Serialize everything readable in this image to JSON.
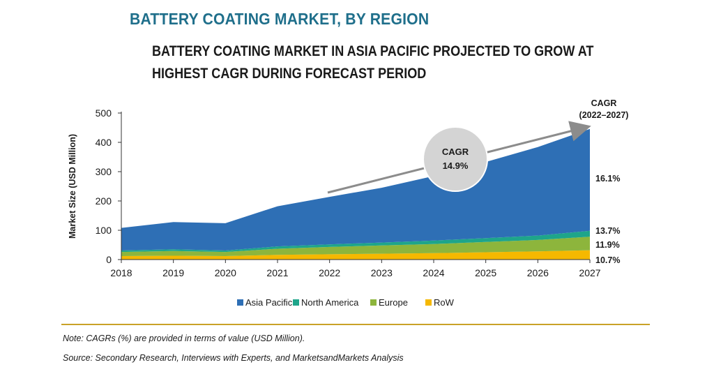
{
  "header": {
    "title": "BATTERY COATING MARKET, BY REGION",
    "subtitle_line1": "BATTERY COATING MARKET IN ASIA PACIFIC PROJECTED TO GROW AT",
    "subtitle_line2": "HIGHEST CAGR DURING FORECAST PERIOD"
  },
  "chart_data": {
    "type": "area",
    "stacked": true,
    "ylabel": "Market Size (USD Million)",
    "xlabel": "",
    "ylim": [
      0,
      500
    ],
    "yticks": [
      0,
      100,
      200,
      300,
      400,
      500
    ],
    "categories": [
      "2018",
      "2019",
      "2020",
      "2021",
      "2022",
      "2023",
      "2024",
      "2025",
      "2026",
      "2027"
    ],
    "series": [
      {
        "name": "RoW",
        "color": "#f5b800",
        "values": [
          12,
          13,
          12,
          16,
          18,
          20,
          22,
          25,
          28,
          32
        ],
        "cagr": "10.7%"
      },
      {
        "name": "Europe",
        "color": "#8db53c",
        "values": [
          14,
          16,
          14,
          21,
          25,
          28,
          31,
          35,
          39,
          46
        ],
        "cagr": "11.9%"
      },
      {
        "name": "North America",
        "color": "#1ea58a",
        "values": [
          5,
          6,
          5,
          8,
          9,
          10,
          12,
          13,
          15,
          20
        ],
        "cagr": "13.7%"
      },
      {
        "name": "Asia Pacific",
        "color": "#2e6fb5",
        "values": [
          77,
          93,
          93,
          137,
          162,
          187,
          220,
          260,
          302,
          348
        ],
        "cagr": "16.1%"
      }
    ],
    "legend_order": [
      "Asia Pacific",
      "North America",
      "Europe",
      "RoW"
    ],
    "legend_position": "bottom",
    "annotations": {
      "overall_cagr_label": "CAGR",
      "overall_cagr_value": "14.9%",
      "cagr_header_line1": "CAGR",
      "cagr_header_line2": "(2022–2027)"
    },
    "grid": false
  },
  "footer": {
    "note": "Note: CAGRs (%) are provided in terms of value (USD Million).",
    "source": "Source: Secondary Research, Interviews with Experts, and MarketsandMarkets Analysis"
  }
}
